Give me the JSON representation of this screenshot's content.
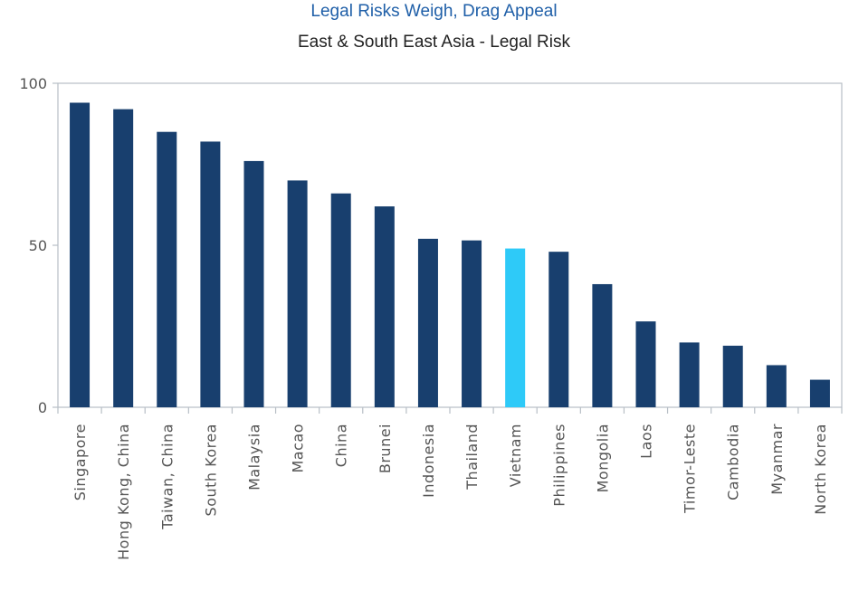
{
  "chart_data": {
    "type": "bar",
    "title": "Legal Risks Weigh, Drag Appeal",
    "subtitle": "East & South East Asia - Legal Risk",
    "xlabel": "",
    "ylabel": "",
    "ylim": [
      0,
      100
    ],
    "yticks": [
      0,
      50,
      100
    ],
    "grid": false,
    "categories": [
      "Singapore",
      "Hong Kong, China",
      "Taiwan, China",
      "South Korea",
      "Malaysia",
      "Macao",
      "China",
      "Brunei",
      "Indonesia",
      "Thailand",
      "Vietnam",
      "Philippines",
      "Mongolia",
      "Laos",
      "Timor-Leste",
      "Cambodia",
      "Myanmar",
      "North Korea"
    ],
    "values": [
      94,
      92,
      85,
      82,
      76,
      70,
      66,
      62,
      52,
      51.5,
      49,
      48,
      38,
      26.5,
      20,
      19,
      13,
      8.5
    ],
    "highlight": "Vietnam",
    "colors": {
      "bar": "#183f6e",
      "highlight": "#2ecaf8",
      "title": "#1f5fa8",
      "axis": "#b8bfc6",
      "tick_text": "#555555"
    }
  }
}
